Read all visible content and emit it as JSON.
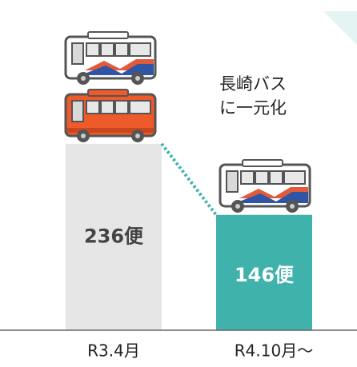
{
  "chart_data": {
    "type": "bar",
    "categories": [
      "R3.4月",
      "R4.10月～"
    ],
    "values": [
      236,
      146
    ],
    "value_labels": [
      "236便",
      "146便"
    ],
    "colors": [
      "#e6e6e6",
      "#3fb2ac"
    ],
    "annotation": [
      "長崎バス",
      "に一元化"
    ]
  }
}
